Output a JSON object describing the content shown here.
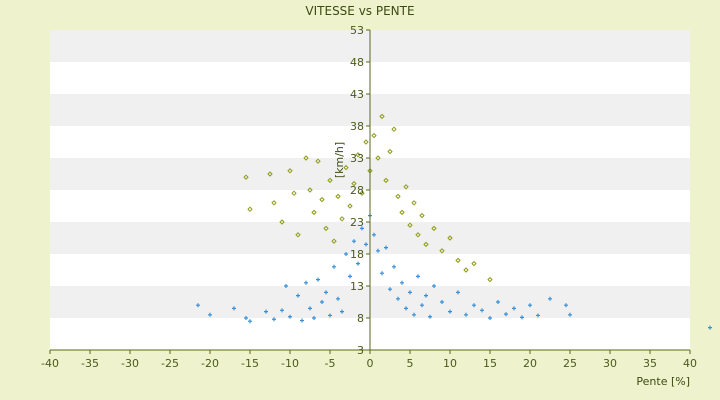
{
  "chart_data": {
    "type": "scatter",
    "title": "VITESSE vs PENTE",
    "xlabel": "Pente [%]",
    "ylabel": "[km/h]",
    "xlim": [
      -40,
      40
    ],
    "ylim": [
      3,
      53
    ],
    "x_ticks": [
      -40,
      -35,
      -30,
      -25,
      -20,
      -15,
      -10,
      -5,
      0,
      5,
      10,
      15,
      20,
      25,
      30,
      35,
      40
    ],
    "y_ticks": [
      3,
      8,
      13,
      18,
      23,
      28,
      33,
      38,
      43,
      48,
      53
    ],
    "grid": "horizontal alternating bands",
    "colors": {
      "page_background": "#eef3cd",
      "plot_band_light": "#ffffff",
      "plot_band_dark": "#f0f0f0",
      "axis": "#5a6a1a",
      "series_blue": "#3a8fd6",
      "series_olive": "#8c9a14"
    },
    "series": [
      {
        "color": "#3a8fd6",
        "marker": "small cross",
        "points": [
          [
            -21.5,
            10.0
          ],
          [
            -20.0,
            8.5
          ],
          [
            -17.0,
            9.5
          ],
          [
            -15.5,
            8.0
          ],
          [
            -15.0,
            7.5
          ],
          [
            -13.0,
            9.0
          ],
          [
            -12.0,
            7.8
          ],
          [
            -11.0,
            9.2
          ],
          [
            -10.5,
            13.0
          ],
          [
            -10.0,
            8.2
          ],
          [
            -9.0,
            11.5
          ],
          [
            -8.5,
            7.6
          ],
          [
            -8.0,
            13.5
          ],
          [
            -7.5,
            9.5
          ],
          [
            -7.0,
            8.0
          ],
          [
            -6.5,
            14.0
          ],
          [
            -6.0,
            10.5
          ],
          [
            -5.5,
            12.0
          ],
          [
            -5.0,
            8.4
          ],
          [
            -4.5,
            16.0
          ],
          [
            -4.0,
            11.0
          ],
          [
            -3.5,
            9.0
          ],
          [
            -3.0,
            18.0
          ],
          [
            -2.5,
            14.5
          ],
          [
            -2.0,
            20.0
          ],
          [
            -1.5,
            16.5
          ],
          [
            -1.0,
            22.0
          ],
          [
            -0.5,
            19.5
          ],
          [
            0.0,
            24.0
          ],
          [
            0.5,
            21.0
          ],
          [
            1.0,
            18.5
          ],
          [
            1.5,
            15.0
          ],
          [
            2.0,
            19.0
          ],
          [
            2.5,
            12.5
          ],
          [
            3.0,
            16.0
          ],
          [
            3.5,
            11.0
          ],
          [
            4.0,
            13.5
          ],
          [
            4.5,
            9.5
          ],
          [
            5.0,
            12.0
          ],
          [
            5.5,
            8.5
          ],
          [
            6.0,
            14.5
          ],
          [
            6.5,
            10.0
          ],
          [
            7.0,
            11.5
          ],
          [
            7.5,
            8.2
          ],
          [
            8.0,
            13.0
          ],
          [
            9.0,
            10.5
          ],
          [
            10.0,
            9.0
          ],
          [
            11.0,
            12.0
          ],
          [
            12.0,
            8.5
          ],
          [
            13.0,
            10.0
          ],
          [
            14.0,
            9.2
          ],
          [
            15.0,
            8.0
          ],
          [
            16.0,
            10.5
          ],
          [
            17.0,
            8.6
          ],
          [
            18.0,
            9.5
          ],
          [
            19.0,
            8.1
          ],
          [
            20.0,
            10.0
          ],
          [
            21.0,
            8.4
          ],
          [
            22.5,
            11.0
          ],
          [
            24.5,
            10.0
          ],
          [
            25.0,
            8.5
          ],
          [
            42.5,
            6.5
          ]
        ]
      },
      {
        "color": "#8c9a14",
        "marker": "small diamond",
        "points": [
          [
            -15.5,
            30.0
          ],
          [
            -15.0,
            25.0
          ],
          [
            -12.5,
            30.5
          ],
          [
            -12.0,
            26.0
          ],
          [
            -11.0,
            23.0
          ],
          [
            -10.0,
            31.0
          ],
          [
            -9.5,
            27.5
          ],
          [
            -9.0,
            21.0
          ],
          [
            -8.0,
            33.0
          ],
          [
            -7.5,
            28.0
          ],
          [
            -7.0,
            24.5
          ],
          [
            -6.5,
            32.5
          ],
          [
            -6.0,
            26.5
          ],
          [
            -5.5,
            22.0
          ],
          [
            -5.0,
            29.5
          ],
          [
            -4.5,
            20.0
          ],
          [
            -4.0,
            27.0
          ],
          [
            -3.5,
            23.5
          ],
          [
            -3.0,
            31.5
          ],
          [
            -2.5,
            25.5
          ],
          [
            -2.0,
            29.0
          ],
          [
            -1.5,
            33.5
          ],
          [
            -1.0,
            27.5
          ],
          [
            -0.5,
            35.5
          ],
          [
            0.0,
            31.0
          ],
          [
            0.5,
            36.5
          ],
          [
            1.0,
            33.0
          ],
          [
            1.5,
            39.5
          ],
          [
            2.0,
            29.5
          ],
          [
            2.5,
            34.0
          ],
          [
            3.0,
            37.5
          ],
          [
            3.5,
            27.0
          ],
          [
            4.0,
            24.5
          ],
          [
            4.5,
            28.5
          ],
          [
            5.0,
            22.5
          ],
          [
            5.5,
            26.0
          ],
          [
            6.0,
            21.0
          ],
          [
            6.5,
            24.0
          ],
          [
            7.0,
            19.5
          ],
          [
            8.0,
            22.0
          ],
          [
            9.0,
            18.5
          ],
          [
            10.0,
            20.5
          ],
          [
            11.0,
            17.0
          ],
          [
            12.0,
            15.5
          ],
          [
            13.0,
            16.5
          ],
          [
            15.0,
            14.0
          ]
        ]
      }
    ]
  }
}
